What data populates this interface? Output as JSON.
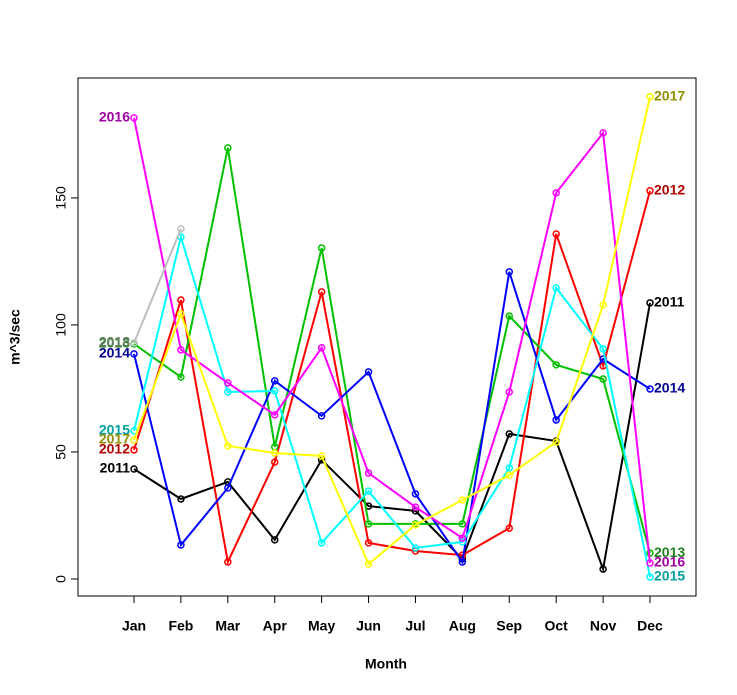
{
  "chart_data": {
    "type": "line",
    "x_label": "Month",
    "y_label": "m^3/sec",
    "categories": [
      "Jan",
      "Feb",
      "Mar",
      "Apr",
      "May",
      "Jun",
      "Jul",
      "Aug",
      "Sep",
      "Oct",
      "Nov",
      "Dec"
    ],
    "ylim": [
      -6.7,
      197.2
    ],
    "yticks": [
      0,
      50,
      100,
      150
    ],
    "series": [
      {
        "name": "2011",
        "color": "#000000",
        "label_color": "#000000",
        "values": [
          43.3,
          31.5,
          38.2,
          15.4,
          46.9,
          28.7,
          26.8,
          7.9,
          57.1,
          54.3,
          3.9,
          108.7
        ]
      },
      {
        "name": "2012",
        "color": "#ff0000",
        "label_color": "#b00000",
        "values": [
          50.8,
          109.8,
          6.7,
          46.0,
          113.0,
          14.2,
          11.0,
          9.4,
          20.0,
          135.8,
          83.9,
          152.8
        ]
      },
      {
        "name": "2013",
        "color": "#00c000",
        "label_color": "#208020",
        "values": [
          92.5,
          79.5,
          169.7,
          52.0,
          130.3,
          21.7,
          21.7,
          21.7,
          103.5,
          84.3,
          78.7,
          10.2
        ]
      },
      {
        "name": "2014",
        "color": "#0000ff",
        "label_color": "#000090",
        "values": [
          88.6,
          13.4,
          35.8,
          78.0,
          64.2,
          81.5,
          33.5,
          6.7,
          120.9,
          62.6,
          86.6,
          74.8
        ]
      },
      {
        "name": "2015",
        "color": "#00ffff",
        "label_color": "#00a0a0",
        "values": [
          58.3,
          134.6,
          73.6,
          74.0,
          14.2,
          34.6,
          12.2,
          14.6,
          43.7,
          114.6,
          90.6,
          0.8
        ]
      },
      {
        "name": "2016",
        "color": "#ff00ff",
        "label_color": "#a000a0",
        "values": [
          181.5,
          90.2,
          77.2,
          64.6,
          91.0,
          41.7,
          28.3,
          16.1,
          73.6,
          152.0,
          175.6,
          6.3
        ]
      },
      {
        "name": "2017",
        "color": "#ffff00",
        "label_color": "#909000",
        "values": [
          54.7,
          104.3,
          52.4,
          49.6,
          48.4,
          5.9,
          21.3,
          31.1,
          40.9,
          53.9,
          107.9,
          189.8
        ]
      },
      {
        "name": "2018",
        "color": "#bebebe",
        "label_color": "#608060",
        "values": [
          92.9,
          137.8,
          null,
          null,
          null,
          null,
          null,
          null,
          null,
          null,
          null,
          null
        ]
      }
    ]
  }
}
